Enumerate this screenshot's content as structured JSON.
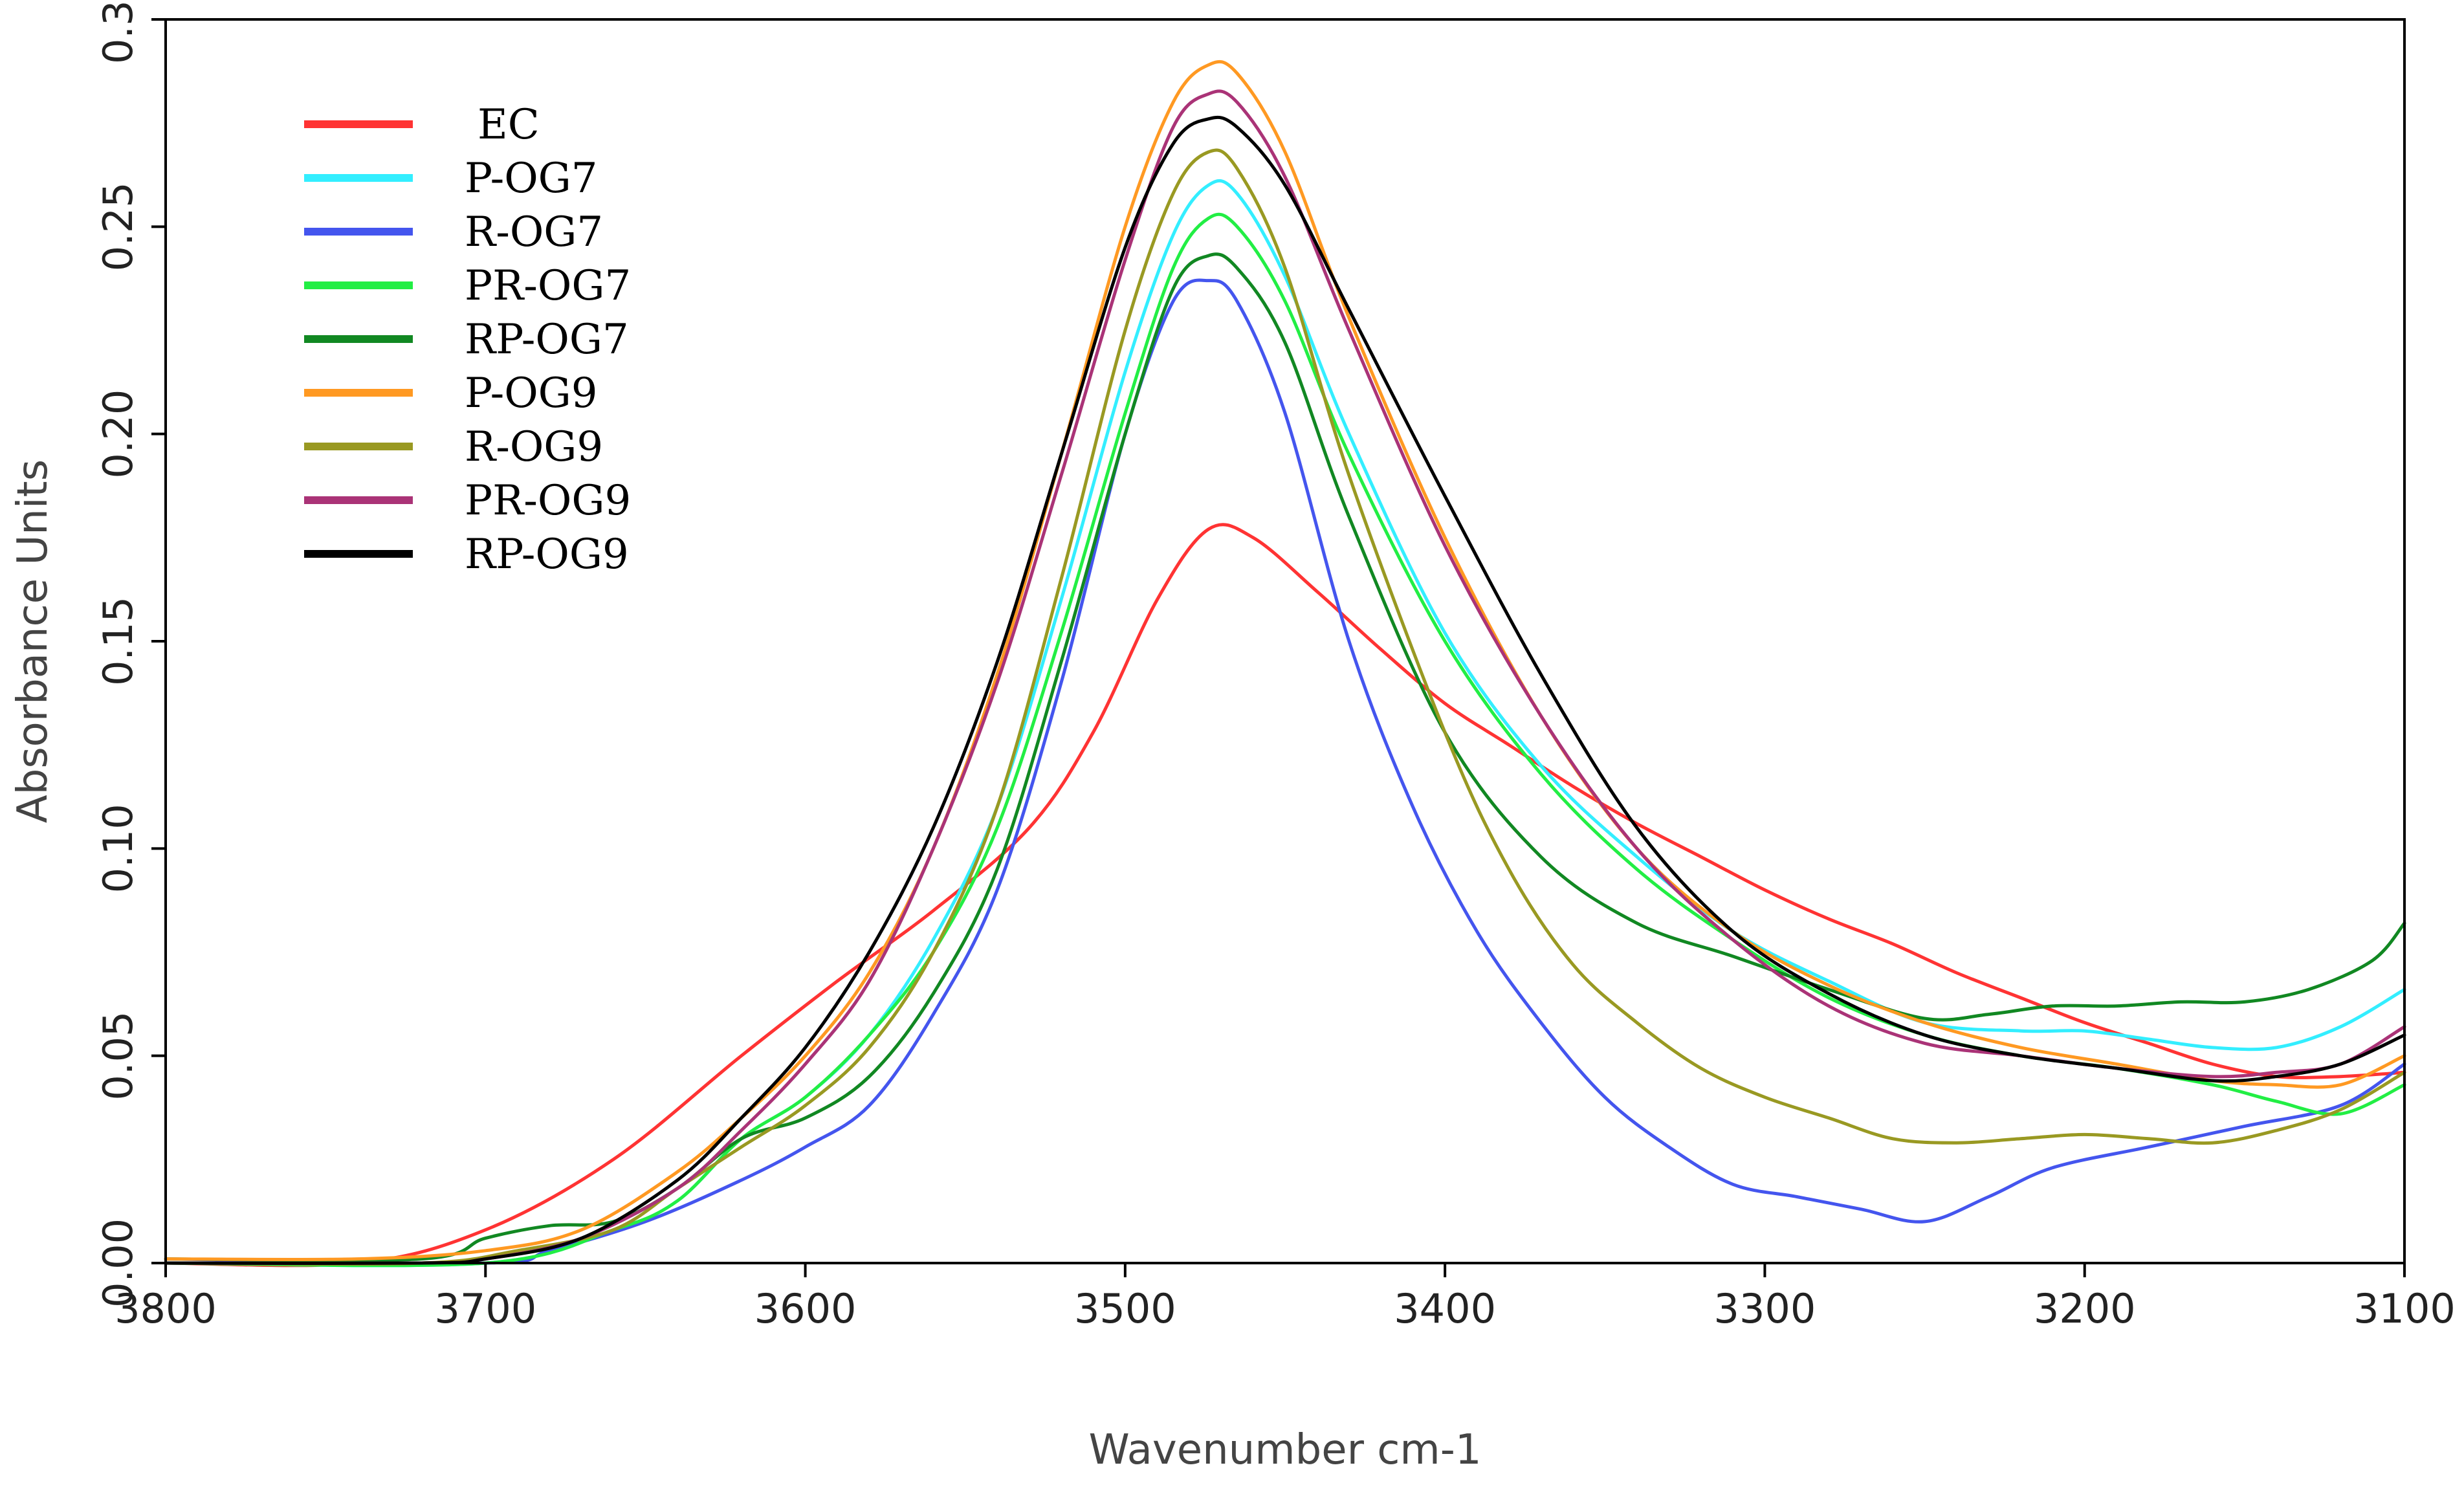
{
  "chart_data": {
    "type": "line",
    "title": "",
    "xlabel": "Wavenumber cm-1",
    "ylabel": "Absorbance Units",
    "xlim": [
      3800,
      3100
    ],
    "ylim": [
      0,
      0.3
    ],
    "x_reversed": true,
    "grid": false,
    "legend_position": "top-left",
    "xticks": [
      3800,
      3700,
      3600,
      3500,
      3400,
      3300,
      3200,
      3100
    ],
    "xtick_labels": [
      "3800",
      "3700",
      "3600",
      "3500",
      "3400",
      "3300",
      "3200",
      "3100"
    ],
    "yticks": [
      0,
      0.05,
      0.1,
      0.15,
      0.2,
      0.25,
      0.3
    ],
    "ytick_labels": [
      "0.00",
      "0.05",
      "0.10",
      "0.15",
      "0.20",
      "0.25",
      "0.30"
    ],
    "series": [
      {
        "name": "EC",
        "color": "#ff3333",
        "points": [
          [
            3800,
            0.0
          ],
          [
            3740,
            0.0
          ],
          [
            3700,
            0.008
          ],
          [
            3660,
            0.025
          ],
          [
            3620,
            0.05
          ],
          [
            3590,
            0.068
          ],
          [
            3560,
            0.085
          ],
          [
            3530,
            0.105
          ],
          [
            3510,
            0.128
          ],
          [
            3490,
            0.16
          ],
          [
            3474,
            0.177
          ],
          [
            3460,
            0.175
          ],
          [
            3440,
            0.162
          ],
          [
            3420,
            0.148
          ],
          [
            3400,
            0.135
          ],
          [
            3380,
            0.125
          ],
          [
            3360,
            0.115
          ],
          [
            3340,
            0.106
          ],
          [
            3320,
            0.098
          ],
          [
            3300,
            0.09
          ],
          [
            3280,
            0.083
          ],
          [
            3260,
            0.077
          ],
          [
            3240,
            0.07
          ],
          [
            3220,
            0.064
          ],
          [
            3200,
            0.058
          ],
          [
            3180,
            0.053
          ],
          [
            3160,
            0.048
          ],
          [
            3140,
            0.045
          ],
          [
            3120,
            0.045
          ],
          [
            3100,
            0.046
          ]
        ]
      },
      {
        "name": "P-OG7",
        "color": "#33eeff",
        "points": [
          [
            3800,
            0.0
          ],
          [
            3700,
            0.0
          ],
          [
            3660,
            0.008
          ],
          [
            3640,
            0.015
          ],
          [
            3620,
            0.03
          ],
          [
            3600,
            0.04
          ],
          [
            3580,
            0.055
          ],
          [
            3560,
            0.078
          ],
          [
            3540,
            0.11
          ],
          [
            3520,
            0.16
          ],
          [
            3500,
            0.215
          ],
          [
            3485,
            0.248
          ],
          [
            3474,
            0.26
          ],
          [
            3465,
            0.258
          ],
          [
            3450,
            0.238
          ],
          [
            3430,
            0.2
          ],
          [
            3400,
            0.152
          ],
          [
            3370,
            0.12
          ],
          [
            3340,
            0.098
          ],
          [
            3310,
            0.08
          ],
          [
            3280,
            0.068
          ],
          [
            3250,
            0.058
          ],
          [
            3220,
            0.056
          ],
          [
            3200,
            0.056
          ],
          [
            3180,
            0.054
          ],
          [
            3160,
            0.052
          ],
          [
            3140,
            0.052
          ],
          [
            3120,
            0.057
          ],
          [
            3100,
            0.066
          ]
        ]
      },
      {
        "name": "R-OG7",
        "color": "#4455ee",
        "points": [
          [
            3800,
            0.001
          ],
          [
            3700,
            0.0
          ],
          [
            3680,
            0.003
          ],
          [
            3650,
            0.01
          ],
          [
            3620,
            0.02
          ],
          [
            3600,
            0.028
          ],
          [
            3580,
            0.038
          ],
          [
            3560,
            0.06
          ],
          [
            3540,
            0.09
          ],
          [
            3520,
            0.14
          ],
          [
            3500,
            0.2
          ],
          [
            3485,
            0.232
          ],
          [
            3474,
            0.237
          ],
          [
            3465,
            0.232
          ],
          [
            3450,
            0.205
          ],
          [
            3430,
            0.15
          ],
          [
            3410,
            0.11
          ],
          [
            3390,
            0.08
          ],
          [
            3370,
            0.058
          ],
          [
            3350,
            0.04
          ],
          [
            3330,
            0.028
          ],
          [
            3310,
            0.019
          ],
          [
            3290,
            0.016
          ],
          [
            3270,
            0.013
          ],
          [
            3250,
            0.01
          ],
          [
            3230,
            0.016
          ],
          [
            3210,
            0.023
          ],
          [
            3180,
            0.028
          ],
          [
            3150,
            0.033
          ],
          [
            3120,
            0.038
          ],
          [
            3100,
            0.048
          ]
        ]
      },
      {
        "name": "PR-OG7",
        "color": "#22ee44",
        "points": [
          [
            3800,
            0.0
          ],
          [
            3700,
            0.0
          ],
          [
            3660,
            0.008
          ],
          [
            3640,
            0.015
          ],
          [
            3620,
            0.03
          ],
          [
            3600,
            0.04
          ],
          [
            3580,
            0.055
          ],
          [
            3560,
            0.075
          ],
          [
            3540,
            0.105
          ],
          [
            3520,
            0.152
          ],
          [
            3500,
            0.205
          ],
          [
            3485,
            0.24
          ],
          [
            3474,
            0.252
          ],
          [
            3465,
            0.25
          ],
          [
            3450,
            0.232
          ],
          [
            3430,
            0.195
          ],
          [
            3400,
            0.15
          ],
          [
            3370,
            0.118
          ],
          [
            3340,
            0.095
          ],
          [
            3310,
            0.078
          ],
          [
            3280,
            0.064
          ],
          [
            3250,
            0.055
          ],
          [
            3220,
            0.05
          ],
          [
            3190,
            0.047
          ],
          [
            3160,
            0.043
          ],
          [
            3140,
            0.039
          ],
          [
            3120,
            0.036
          ],
          [
            3100,
            0.043
          ]
        ]
      },
      {
        "name": "RP-OG7",
        "color": "#118822",
        "points": [
          [
            3800,
            0.001
          ],
          [
            3720,
            0.001
          ],
          [
            3700,
            0.006
          ],
          [
            3680,
            0.009
          ],
          [
            3660,
            0.01
          ],
          [
            3640,
            0.018
          ],
          [
            3620,
            0.03
          ],
          [
            3600,
            0.035
          ],
          [
            3580,
            0.045
          ],
          [
            3560,
            0.065
          ],
          [
            3540,
            0.095
          ],
          [
            3520,
            0.145
          ],
          [
            3500,
            0.2
          ],
          [
            3485,
            0.235
          ],
          [
            3474,
            0.243
          ],
          [
            3465,
            0.24
          ],
          [
            3450,
            0.222
          ],
          [
            3430,
            0.18
          ],
          [
            3400,
            0.128
          ],
          [
            3370,
            0.098
          ],
          [
            3340,
            0.082
          ],
          [
            3310,
            0.074
          ],
          [
            3280,
            0.066
          ],
          [
            3250,
            0.059
          ],
          [
            3230,
            0.06
          ],
          [
            3210,
            0.062
          ],
          [
            3190,
            0.062
          ],
          [
            3170,
            0.063
          ],
          [
            3150,
            0.063
          ],
          [
            3130,
            0.066
          ],
          [
            3110,
            0.073
          ],
          [
            3100,
            0.082
          ]
        ]
      },
      {
        "name": "P-OG9",
        "color": "#ff9922",
        "points": [
          [
            3800,
            0.001
          ],
          [
            3740,
            0.001
          ],
          [
            3700,
            0.003
          ],
          [
            3670,
            0.008
          ],
          [
            3640,
            0.022
          ],
          [
            3620,
            0.035
          ],
          [
            3600,
            0.05
          ],
          [
            3580,
            0.07
          ],
          [
            3560,
            0.1
          ],
          [
            3540,
            0.142
          ],
          [
            3520,
            0.195
          ],
          [
            3500,
            0.25
          ],
          [
            3485,
            0.28
          ],
          [
            3474,
            0.289
          ],
          [
            3465,
            0.287
          ],
          [
            3450,
            0.268
          ],
          [
            3430,
            0.228
          ],
          [
            3400,
            0.175
          ],
          [
            3370,
            0.132
          ],
          [
            3340,
            0.1
          ],
          [
            3310,
            0.08
          ],
          [
            3280,
            0.067
          ],
          [
            3250,
            0.058
          ],
          [
            3220,
            0.052
          ],
          [
            3190,
            0.048
          ],
          [
            3160,
            0.044
          ],
          [
            3140,
            0.043
          ],
          [
            3120,
            0.043
          ],
          [
            3100,
            0.05
          ]
        ]
      },
      {
        "name": "R-OG9",
        "color": "#999922",
        "points": [
          [
            3800,
            0.0
          ],
          [
            3720,
            0.0
          ],
          [
            3690,
            0.003
          ],
          [
            3660,
            0.008
          ],
          [
            3640,
            0.018
          ],
          [
            3620,
            0.028
          ],
          [
            3600,
            0.038
          ],
          [
            3580,
            0.052
          ],
          [
            3560,
            0.075
          ],
          [
            3540,
            0.11
          ],
          [
            3520,
            0.165
          ],
          [
            3500,
            0.225
          ],
          [
            3485,
            0.258
          ],
          [
            3474,
            0.268
          ],
          [
            3465,
            0.264
          ],
          [
            3450,
            0.24
          ],
          [
            3430,
            0.19
          ],
          [
            3400,
            0.128
          ],
          [
            3380,
            0.095
          ],
          [
            3360,
            0.072
          ],
          [
            3340,
            0.058
          ],
          [
            3320,
            0.047
          ],
          [
            3300,
            0.04
          ],
          [
            3280,
            0.035
          ],
          [
            3260,
            0.03
          ],
          [
            3240,
            0.029
          ],
          [
            3220,
            0.03
          ],
          [
            3200,
            0.031
          ],
          [
            3180,
            0.03
          ],
          [
            3160,
            0.029
          ],
          [
            3140,
            0.032
          ],
          [
            3120,
            0.037
          ],
          [
            3100,
            0.046
          ]
        ]
      },
      {
        "name": "PR-OG9",
        "color": "#aa3377",
        "points": [
          [
            3800,
            0.0
          ],
          [
            3720,
            0.0
          ],
          [
            3700,
            0.001
          ],
          [
            3670,
            0.006
          ],
          [
            3640,
            0.018
          ],
          [
            3620,
            0.032
          ],
          [
            3600,
            0.048
          ],
          [
            3580,
            0.068
          ],
          [
            3560,
            0.1
          ],
          [
            3540,
            0.14
          ],
          [
            3520,
            0.19
          ],
          [
            3500,
            0.242
          ],
          [
            3485,
            0.274
          ],
          [
            3474,
            0.282
          ],
          [
            3465,
            0.28
          ],
          [
            3450,
            0.262
          ],
          [
            3430,
            0.225
          ],
          [
            3400,
            0.173
          ],
          [
            3370,
            0.132
          ],
          [
            3340,
            0.1
          ],
          [
            3310,
            0.078
          ],
          [
            3280,
            0.062
          ],
          [
            3250,
            0.053
          ],
          [
            3220,
            0.05
          ],
          [
            3190,
            0.047
          ],
          [
            3160,
            0.045
          ],
          [
            3140,
            0.046
          ],
          [
            3120,
            0.048
          ],
          [
            3100,
            0.057
          ]
        ]
      },
      {
        "name": "RP-OG9",
        "color": "#000000",
        "points": [
          [
            3800,
            0.0
          ],
          [
            3720,
            0.0
          ],
          [
            3700,
            0.001
          ],
          [
            3670,
            0.006
          ],
          [
            3640,
            0.02
          ],
          [
            3620,
            0.035
          ],
          [
            3600,
            0.052
          ],
          [
            3580,
            0.075
          ],
          [
            3560,
            0.105
          ],
          [
            3540,
            0.145
          ],
          [
            3520,
            0.195
          ],
          [
            3500,
            0.245
          ],
          [
            3485,
            0.27
          ],
          [
            3474,
            0.276
          ],
          [
            3465,
            0.274
          ],
          [
            3450,
            0.26
          ],
          [
            3430,
            0.23
          ],
          [
            3400,
            0.185
          ],
          [
            3370,
            0.142
          ],
          [
            3340,
            0.105
          ],
          [
            3310,
            0.08
          ],
          [
            3280,
            0.065
          ],
          [
            3250,
            0.055
          ],
          [
            3220,
            0.05
          ],
          [
            3190,
            0.047
          ],
          [
            3160,
            0.044
          ],
          [
            3140,
            0.045
          ],
          [
            3120,
            0.048
          ],
          [
            3100,
            0.055
          ]
        ]
      }
    ]
  }
}
